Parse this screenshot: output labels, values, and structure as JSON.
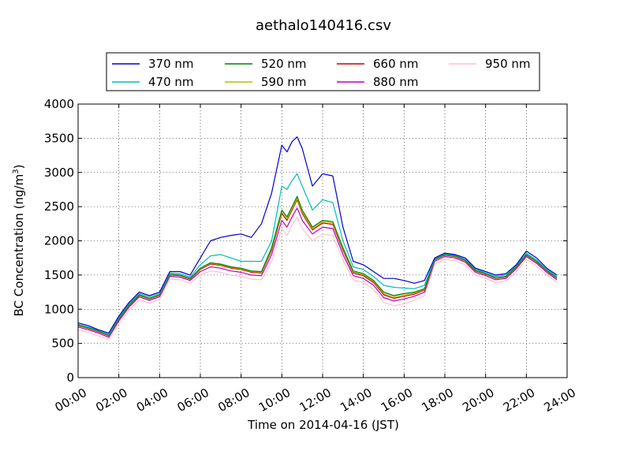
{
  "chart_data": {
    "type": "line",
    "title": "aethalo140416.csv",
    "xlabel": "Time on 2014-04-16 (JST)",
    "ylabel": "BC Concentration (ng/m",
    "ylabel_sup": "3",
    "ylabel_end": ")",
    "xlim": [
      0,
      24
    ],
    "ylim": [
      0,
      4000
    ],
    "grid": true,
    "legend_placement": "top",
    "x_ticks": [
      0,
      2,
      4,
      6,
      8,
      10,
      12,
      14,
      16,
      18,
      20,
      22,
      24
    ],
    "x_tick_labels": [
      "00:00",
      "02:00",
      "04:00",
      "06:00",
      "08:00",
      "10:00",
      "12:00",
      "14:00",
      "16:00",
      "18:00",
      "20:00",
      "22:00",
      "24:00"
    ],
    "y_ticks": [
      0,
      500,
      1000,
      1500,
      2000,
      2500,
      3000,
      3500,
      4000
    ],
    "y_tick_labels": [
      "0",
      "500",
      "1000",
      "1500",
      "2000",
      "2500",
      "3000",
      "3500",
      "4000"
    ],
    "x": [
      0,
      0.5,
      1,
      1.5,
      2,
      2.5,
      3,
      3.5,
      4,
      4.5,
      5,
      5.5,
      6,
      6.5,
      7,
      7.5,
      8,
      8.5,
      9,
      9.5,
      10,
      10.25,
      10.5,
      10.75,
      11,
      11.5,
      12,
      12.5,
      13,
      13.5,
      14,
      14.5,
      15,
      15.5,
      16,
      16.5,
      17,
      17.5,
      18,
      18.5,
      19,
      19.5,
      20,
      20.5,
      21,
      21.5,
      22,
      22.5,
      23,
      23.5
    ],
    "series": [
      {
        "name": "370 nm",
        "color": "#0000cc",
        "values": [
          800,
          760,
          700,
          650,
          900,
          1100,
          1250,
          1200,
          1250,
          1550,
          1550,
          1500,
          1750,
          2000,
          2050,
          2080,
          2100,
          2050,
          2250,
          2700,
          3400,
          3300,
          3450,
          3520,
          3350,
          2800,
          2980,
          2950,
          2200,
          1700,
          1650,
          1550,
          1450,
          1450,
          1420,
          1380,
          1420,
          1750,
          1820,
          1800,
          1750,
          1600,
          1550,
          1500,
          1520,
          1650,
          1850,
          1750,
          1600,
          1500
        ]
      },
      {
        "name": "470 nm",
        "color": "#00bbbb",
        "values": [
          780,
          740,
          690,
          630,
          880,
          1080,
          1230,
          1180,
          1230,
          1530,
          1520,
          1470,
          1650,
          1780,
          1800,
          1750,
          1700,
          1700,
          1700,
          2000,
          2800,
          2750,
          2880,
          2980,
          2800,
          2450,
          2600,
          2560,
          2000,
          1620,
          1580,
          1480,
          1350,
          1320,
          1310,
          1300,
          1350,
          1740,
          1810,
          1790,
          1730,
          1590,
          1530,
          1480,
          1500,
          1640,
          1820,
          1720,
          1580,
          1480
        ]
      },
      {
        "name": "520 nm",
        "color": "#008000",
        "values": [
          770,
          730,
          680,
          620,
          860,
          1060,
          1210,
          1160,
          1210,
          1510,
          1500,
          1450,
          1600,
          1680,
          1660,
          1620,
          1600,
          1560,
          1550,
          1900,
          2450,
          2350,
          2500,
          2650,
          2450,
          2200,
          2300,
          2280,
          1900,
          1560,
          1520,
          1420,
          1250,
          1200,
          1230,
          1250,
          1300,
          1730,
          1800,
          1780,
          1720,
          1570,
          1520,
          1460,
          1480,
          1620,
          1800,
          1700,
          1570,
          1460
        ]
      },
      {
        "name": "590 nm",
        "color": "#bbbb00",
        "values": [
          765,
          725,
          675,
          615,
          855,
          1055,
          1205,
          1155,
          1205,
          1505,
          1495,
          1445,
          1590,
          1670,
          1650,
          1610,
          1590,
          1550,
          1540,
          1880,
          2420,
          2320,
          2470,
          2620,
          2420,
          2180,
          2280,
          2260,
          1880,
          1545,
          1505,
          1405,
          1230,
          1180,
          1210,
          1235,
          1290,
          1725,
          1795,
          1775,
          1715,
          1565,
          1515,
          1455,
          1475,
          1615,
          1795,
          1695,
          1565,
          1455
        ]
      },
      {
        "name": "660 nm",
        "color": "#cc0000",
        "values": [
          760,
          720,
          670,
          610,
          850,
          1050,
          1200,
          1150,
          1200,
          1500,
          1490,
          1440,
          1580,
          1660,
          1640,
          1600,
          1580,
          1540,
          1530,
          1860,
          2400,
          2300,
          2450,
          2600,
          2400,
          2160,
          2260,
          2240,
          1860,
          1530,
          1490,
          1390,
          1210,
          1160,
          1190,
          1220,
          1280,
          1720,
          1790,
          1770,
          1710,
          1560,
          1510,
          1450,
          1470,
          1610,
          1790,
          1690,
          1560,
          1450
        ]
      },
      {
        "name": "880 nm",
        "color": "#bb00bb",
        "values": [
          740,
          700,
          650,
          590,
          830,
          1030,
          1180,
          1130,
          1180,
          1480,
          1470,
          1420,
          1550,
          1620,
          1600,
          1560,
          1540,
          1500,
          1490,
          1800,
          2300,
          2200,
          2350,
          2480,
          2300,
          2100,
          2200,
          2180,
          1800,
          1490,
          1450,
          1350,
          1170,
          1120,
          1150,
          1190,
          1250,
          1700,
          1770,
          1750,
          1690,
          1540,
          1490,
          1430,
          1450,
          1590,
          1770,
          1670,
          1540,
          1430
        ]
      },
      {
        "name": "950 nm",
        "color": "#ffc0cb",
        "values": [
          700,
          660,
          610,
          560,
          790,
          990,
          1140,
          1090,
          1140,
          1440,
          1430,
          1380,
          1500,
          1560,
          1540,
          1500,
          1480,
          1440,
          1430,
          1700,
          2180,
          2080,
          2230,
          2350,
          2180,
          2000,
          2100,
          2080,
          1720,
          1430,
          1390,
          1290,
          1100,
          1050,
          1080,
          1130,
          1200,
          1660,
          1730,
          1710,
          1650,
          1500,
          1450,
          1390,
          1410,
          1550,
          1730,
          1630,
          1500,
          1390
        ]
      }
    ]
  }
}
